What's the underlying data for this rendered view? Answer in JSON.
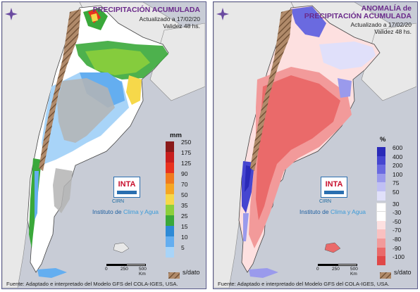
{
  "left_panel": {
    "title_line1": "PRECIPITACIÓN ACUMULADA",
    "updated": "Actualizado a 17/02/20",
    "validity": "Validez 48 hs.",
    "legend_unit": "mm",
    "legend": [
      {
        "label": "250",
        "color": "#8a1a1a"
      },
      {
        "label": "175",
        "color": "#c81e1e"
      },
      {
        "label": "125",
        "color": "#e8321e"
      },
      {
        "label": "90",
        "color": "#f07a1e"
      },
      {
        "label": "70",
        "color": "#f5a623"
      },
      {
        "label": "50",
        "color": "#f6d84a"
      },
      {
        "label": "35",
        "color": "#8ccf3c"
      },
      {
        "label": "25",
        "color": "#3aa83a"
      },
      {
        "label": "15",
        "color": "#2e8ad6"
      },
      {
        "label": "10",
        "color": "#64aef0"
      },
      {
        "label": "5",
        "color": "#a8d4f8"
      }
    ],
    "no_data_label": "s/dato",
    "source": "Fuente: Adaptado e interpretado del Modelo GFS del COLA-IGES, USA."
  },
  "right_panel": {
    "title_line1": "ANOMALÍA de",
    "title_line2": "PRECIPITACIÓN ACUMULADA",
    "updated": "Actualizado a 17/02/20",
    "validity": "Validez 48 hs.",
    "legend_unit": "%",
    "legend": [
      {
        "label": "600",
        "color": "#2a2ab8"
      },
      {
        "label": "400",
        "color": "#4646d0"
      },
      {
        "label": "200",
        "color": "#6a6ae0"
      },
      {
        "label": "100",
        "color": "#9a9aec"
      },
      {
        "label": "75",
        "color": "#c0c0f4"
      },
      {
        "label": "50",
        "color": "#e0e0fa"
      },
      {
        "label": "30",
        "color": "#ffffff"
      },
      {
        "label": "-30",
        "color": "#ffffff"
      },
      {
        "label": "-50",
        "color": "#fde0e0"
      },
      {
        "label": "-70",
        "color": "#f9c0c0"
      },
      {
        "label": "-80",
        "color": "#f29a9a"
      },
      {
        "label": "-90",
        "color": "#ea6a6a"
      },
      {
        "label": "-100",
        "color": "#e04848"
      }
    ],
    "no_data_label": "s/dato",
    "source": "Fuente: Adaptado e interpretado del Modelo GFS del COLA-IGES, USA."
  },
  "branding": {
    "logo_text": "INTA",
    "ciry_text": "CIRN",
    "institute_prefix": "Instituto de ",
    "institute_suffix": "Clima y Agua"
  },
  "scale": {
    "label_0": "0",
    "label_250": "250",
    "label_500": "500 Km"
  }
}
